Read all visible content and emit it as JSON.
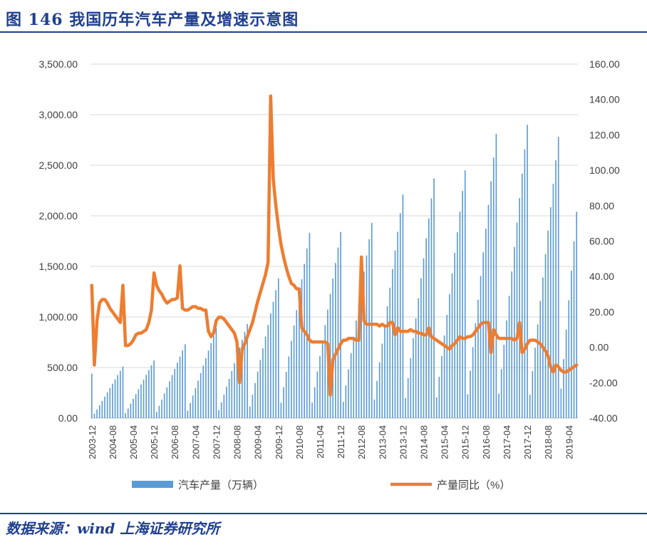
{
  "figure": {
    "title": "图 146  我国历年汽车产量及增速示意图",
    "source": "数据来源：wind 上海证券研究所"
  },
  "chart_data": {
    "type": "bar+line",
    "left_axis": {
      "min": 0,
      "max": 3500,
      "ticks": [
        "0.00",
        "500.00",
        "1,000.00",
        "1,500.00",
        "2,000.00",
        "2,500.00",
        "3,000.00",
        "3,500.00"
      ]
    },
    "right_axis": {
      "min": -40,
      "max": 160,
      "ticks": [
        "-40.00",
        "-20.00",
        "0.00",
        "20.00",
        "40.00",
        "60.00",
        "80.00",
        "100.00",
        "120.00",
        "140.00",
        "160.00"
      ]
    },
    "x_tick_labels": [
      "2003-12",
      "2004-08",
      "2005-04",
      "2005-12",
      "2006-08",
      "2007-04",
      "2007-12",
      "2008-08",
      "2009-04",
      "2009-12",
      "2010-08",
      "2011-04",
      "2011-12",
      "2012-08",
      "2013-04",
      "2013-12",
      "2014-08",
      "2015-04",
      "2015-12",
      "2016-08",
      "2017-04",
      "2017-12",
      "2018-08",
      "2019-04"
    ],
    "legend": [
      "汽车产量（万辆）",
      "产量同比（%）"
    ],
    "colors": {
      "bar": "#5b9bd5",
      "line": "#ed7d31"
    },
    "bar_series": {
      "name": "汽车产量（万辆）",
      "axis": "left",
      "annual_dec_values": [
        440,
        510,
        570,
        730,
        890,
        930,
        1380,
        1830,
        1840,
        1930,
        2210,
        2370,
        2450,
        2810,
        2900,
        2780
      ],
      "last_point": 2040
    },
    "line_series": {
      "name": "产量同比（%）",
      "axis": "right",
      "points": [
        [
          "2003-12",
          35
        ],
        [
          "2004-01",
          -10
        ],
        [
          "2004-02",
          15
        ],
        [
          "2004-03",
          25
        ],
        [
          "2004-04",
          27
        ],
        [
          "2004-05",
          27
        ],
        [
          "2004-06",
          25
        ],
        [
          "2004-07",
          22
        ],
        [
          "2004-08",
          20
        ],
        [
          "2004-09",
          18
        ],
        [
          "2004-10",
          16
        ],
        [
          "2004-11",
          14
        ],
        [
          "2004-12",
          35
        ],
        [
          "2005-01",
          1
        ],
        [
          "2005-02",
          1
        ],
        [
          "2005-03",
          2
        ],
        [
          "2005-04",
          4
        ],
        [
          "2005-05",
          7
        ],
        [
          "2005-06",
          8
        ],
        [
          "2005-07",
          8
        ],
        [
          "2005-08",
          9
        ],
        [
          "2005-09",
          10
        ],
        [
          "2005-10",
          14
        ],
        [
          "2005-11",
          21
        ],
        [
          "2005-12",
          42
        ],
        [
          "2006-01",
          35
        ],
        [
          "2006-02",
          32
        ],
        [
          "2006-03",
          30
        ],
        [
          "2006-04",
          27
        ],
        [
          "2006-05",
          25
        ],
        [
          "2006-06",
          26
        ],
        [
          "2006-07",
          27
        ],
        [
          "2006-08",
          27
        ],
        [
          "2006-09",
          28
        ],
        [
          "2006-10",
          46
        ],
        [
          "2006-11",
          22
        ],
        [
          "2006-12",
          21
        ],
        [
          "2007-01",
          21
        ],
        [
          "2007-02",
          22
        ],
        [
          "2007-03",
          23
        ],
        [
          "2007-04",
          23
        ],
        [
          "2007-05",
          22
        ],
        [
          "2007-06",
          22
        ],
        [
          "2007-07",
          21
        ],
        [
          "2007-08",
          21
        ],
        [
          "2007-09",
          9
        ],
        [
          "2007-10",
          6
        ],
        [
          "2007-11",
          8
        ],
        [
          "2007-12",
          15
        ],
        [
          "2008-01",
          17
        ],
        [
          "2008-02",
          17
        ],
        [
          "2008-03",
          16
        ],
        [
          "2008-04",
          14
        ],
        [
          "2008-05",
          12
        ],
        [
          "2008-06",
          10
        ],
        [
          "2008-07",
          8
        ],
        [
          "2008-08",
          3
        ],
        [
          "2008-09",
          -20
        ],
        [
          "2008-10",
          -1
        ],
        [
          "2008-11",
          2
        ],
        [
          "2008-12",
          6
        ],
        [
          "2009-01",
          10
        ],
        [
          "2009-02",
          14
        ],
        [
          "2009-03",
          20
        ],
        [
          "2009-04",
          26
        ],
        [
          "2009-05",
          31
        ],
        [
          "2009-06",
          36
        ],
        [
          "2009-07",
          41
        ],
        [
          "2009-08",
          48
        ],
        [
          "2009-09",
          142
        ],
        [
          "2009-10",
          95
        ],
        [
          "2009-11",
          80
        ],
        [
          "2009-12",
          68
        ],
        [
          "2010-01",
          58
        ],
        [
          "2010-02",
          51
        ],
        [
          "2010-03",
          45
        ],
        [
          "2010-04",
          40
        ],
        [
          "2010-05",
          36
        ],
        [
          "2010-06",
          35
        ],
        [
          "2010-07",
          33
        ],
        [
          "2010-08",
          33
        ],
        [
          "2010-09",
          11
        ],
        [
          "2010-10",
          9
        ],
        [
          "2010-11",
          7
        ],
        [
          "2010-12",
          4
        ],
        [
          "2011-01",
          3
        ],
        [
          "2011-02",
          3
        ],
        [
          "2011-03",
          3
        ],
        [
          "2011-04",
          3
        ],
        [
          "2011-05",
          3
        ],
        [
          "2011-06",
          3
        ],
        [
          "2011-07",
          2
        ],
        [
          "2011-08",
          -27
        ],
        [
          "2011-09",
          -7
        ],
        [
          "2011-10",
          -4
        ],
        [
          "2011-11",
          -1
        ],
        [
          "2011-12",
          2
        ],
        [
          "2012-01",
          4
        ],
        [
          "2012-02",
          4
        ],
        [
          "2012-03",
          5
        ],
        [
          "2012-04",
          5
        ],
        [
          "2012-05",
          5
        ],
        [
          "2012-06",
          4
        ],
        [
          "2012-07",
          4
        ],
        [
          "2012-08",
          51
        ],
        [
          "2012-09",
          15
        ],
        [
          "2012-10",
          13
        ],
        [
          "2012-11",
          13
        ],
        [
          "2012-12",
          13
        ],
        [
          "2013-01",
          13
        ],
        [
          "2013-02",
          13
        ],
        [
          "2013-03",
          12
        ],
        [
          "2013-04",
          13
        ],
        [
          "2013-05",
          12
        ],
        [
          "2013-06",
          12
        ],
        [
          "2013-07",
          14
        ],
        [
          "2013-08",
          14
        ],
        [
          "2013-09",
          7
        ],
        [
          "2013-10",
          11
        ],
        [
          "2013-11",
          9
        ],
        [
          "2013-12",
          9
        ],
        [
          "2014-01",
          9
        ],
        [
          "2014-02",
          9
        ],
        [
          "2014-03",
          10
        ],
        [
          "2014-04",
          9
        ],
        [
          "2014-05",
          9
        ],
        [
          "2014-06",
          8
        ],
        [
          "2014-07",
          8
        ],
        [
          "2014-08",
          7
        ],
        [
          "2014-09",
          7
        ],
        [
          "2014-10",
          11
        ],
        [
          "2014-11",
          6
        ],
        [
          "2014-12",
          5
        ],
        [
          "2015-01",
          4
        ],
        [
          "2015-02",
          3
        ],
        [
          "2015-03",
          2
        ],
        [
          "2015-04",
          1
        ],
        [
          "2015-05",
          0
        ],
        [
          "2015-06",
          -1
        ],
        [
          "2015-07",
          1
        ],
        [
          "2015-08",
          2
        ],
        [
          "2015-09",
          4
        ],
        [
          "2015-10",
          6
        ],
        [
          "2015-11",
          5
        ],
        [
          "2015-12",
          5
        ],
        [
          "2016-01",
          6
        ],
        [
          "2016-02",
          6
        ],
        [
          "2016-03",
          7
        ],
        [
          "2016-04",
          9
        ],
        [
          "2016-05",
          11
        ],
        [
          "2016-06",
          13
        ],
        [
          "2016-07",
          14
        ],
        [
          "2016-08",
          14
        ],
        [
          "2016-09",
          14
        ],
        [
          "2016-10",
          -3
        ],
        [
          "2016-11",
          10
        ],
        [
          "2016-12",
          7
        ],
        [
          "2017-01",
          5
        ],
        [
          "2017-02",
          5
        ],
        [
          "2017-03",
          5
        ],
        [
          "2017-04",
          5
        ],
        [
          "2017-05",
          5
        ],
        [
          "2017-06",
          5
        ],
        [
          "2017-07",
          4
        ],
        [
          "2017-08",
          5
        ],
        [
          "2017-09",
          14
        ],
        [
          "2017-10",
          -3
        ],
        [
          "2017-11",
          -1
        ],
        [
          "2017-12",
          2
        ],
        [
          "2018-01",
          4
        ],
        [
          "2018-02",
          4
        ],
        [
          "2018-03",
          4
        ],
        [
          "2018-04",
          3
        ],
        [
          "2018-05",
          2
        ],
        [
          "2018-06",
          0
        ],
        [
          "2018-07",
          -2
        ],
        [
          "2018-08",
          -5
        ],
        [
          "2018-09",
          -11
        ],
        [
          "2018-10",
          -14
        ],
        [
          "2018-11",
          -10
        ],
        [
          "2018-12",
          -11
        ],
        [
          "2019-01",
          -13
        ],
        [
          "2019-02",
          -14
        ],
        [
          "2019-03",
          -14
        ],
        [
          "2019-04",
          -13
        ],
        [
          "2019-05",
          -12
        ],
        [
          "2019-06",
          -11
        ],
        [
          "2019-07",
          -10
        ]
      ]
    }
  }
}
